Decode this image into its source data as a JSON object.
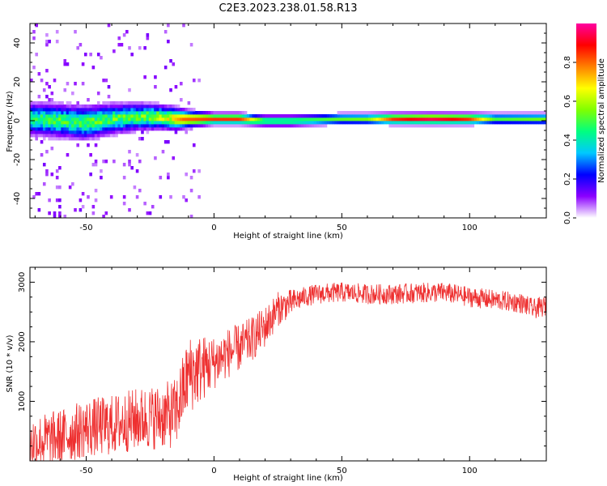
{
  "title": "C2E3.2023.238.01.58.R13",
  "chart_data": [
    {
      "type": "heatmap",
      "xlabel": "Height of straight line (km)",
      "ylabel": "Frequency (Hz)",
      "xlim": [
        -72,
        130
      ],
      "ylim": [
        -50,
        50
      ],
      "xticks": [
        -50,
        0,
        50,
        100
      ],
      "yticks": [
        -40,
        -20,
        0,
        20,
        40
      ],
      "colorbar": {
        "label": "Normalized spectral amplitude",
        "range": [
          0,
          1
        ],
        "ticks": [
          "0.0",
          "0.2",
          "0.4",
          "0.6",
          "0.8"
        ],
        "stops": [
          "#ffffff",
          "#8b00ff",
          "#0000ff",
          "#00c8ff",
          "#00ff80",
          "#80ff00",
          "#ffff00",
          "#ff8000",
          "#ff0000",
          "#ff00a0"
        ]
      },
      "band_center_hz": [
        [
          -72,
          1
        ],
        [
          -60,
          0
        ],
        [
          -50,
          -1
        ],
        [
          -40,
          1
        ],
        [
          -30,
          2
        ],
        [
          -22,
          2
        ],
        [
          -15,
          1
        ],
        [
          -10,
          1
        ],
        [
          0,
          1
        ],
        [
          10,
          1
        ],
        [
          20,
          0
        ],
        [
          30,
          0
        ],
        [
          50,
          1
        ],
        [
          70,
          1
        ],
        [
          90,
          1
        ],
        [
          100,
          1
        ],
        [
          110,
          1
        ],
        [
          130,
          1
        ]
      ],
      "band_halfwidth_hz": [
        [
          -72,
          6
        ],
        [
          -50,
          6
        ],
        [
          -30,
          5
        ],
        [
          -15,
          4
        ],
        [
          -10,
          3
        ],
        [
          0,
          2
        ],
        [
          30,
          2
        ],
        [
          130,
          2
        ]
      ],
      "band_peak_amplitude": [
        [
          -72,
          0.45
        ],
        [
          -50,
          0.5
        ],
        [
          -30,
          0.5
        ],
        [
          -20,
          0.6
        ],
        [
          -12,
          0.8
        ],
        [
          0,
          0.85
        ],
        [
          10,
          0.85
        ],
        [
          20,
          0.5
        ],
        [
          40,
          0.5
        ],
        [
          60,
          0.55
        ],
        [
          70,
          0.85
        ],
        [
          85,
          0.95
        ],
        [
          100,
          0.85
        ],
        [
          110,
          0.5
        ],
        [
          130,
          0.55
        ]
      ]
    },
    {
      "type": "line",
      "xlabel": "Height of straight line (km)",
      "ylabel": "SNR (10 * v/v)",
      "xlim": [
        -72,
        130
      ],
      "ylim": [
        0,
        3250
      ],
      "xticks": [
        -50,
        0,
        50,
        100
      ],
      "yticks": [
        1000,
        2000,
        3000
      ],
      "color": "#ee3030",
      "trend_x": [
        -72,
        -60,
        -50,
        -40,
        -30,
        -20,
        -15,
        -10,
        -5,
        0,
        5,
        10,
        15,
        20,
        25,
        30,
        35,
        40,
        50,
        60,
        70,
        80,
        90,
        100,
        110,
        120,
        125,
        130
      ],
      "trend_y": [
        300,
        400,
        550,
        600,
        700,
        750,
        800,
        1450,
        1550,
        1650,
        1800,
        1900,
        2050,
        2250,
        2550,
        2650,
        2750,
        2800,
        2830,
        2800,
        2800,
        2820,
        2830,
        2750,
        2700,
        2650,
        2550,
        2600
      ],
      "noise_x": [
        -72,
        -20,
        -8,
        0,
        20,
        35,
        130
      ],
      "noise_amplitude": [
        450,
        550,
        650,
        450,
        350,
        170,
        170
      ]
    }
  ]
}
